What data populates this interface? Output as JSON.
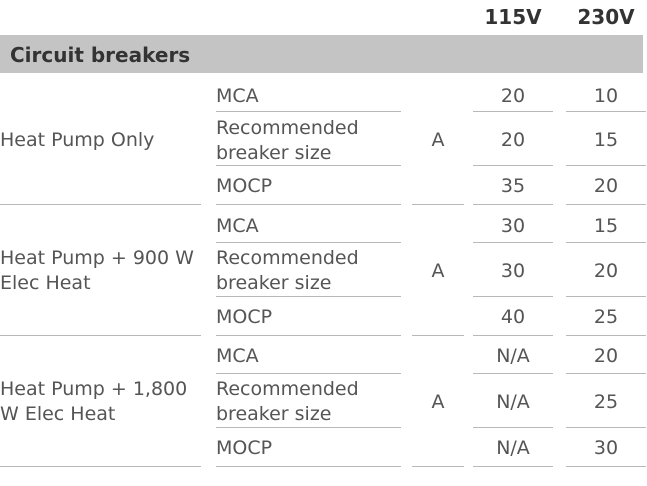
{
  "header": {
    "col_115": "115V",
    "col_230": "230V"
  },
  "section": {
    "title": "Circuit breakers"
  },
  "groups": [
    {
      "label": "Heat Pump Only",
      "unit": "A",
      "rows": [
        {
          "param": "MCA",
          "v115": "20",
          "v230": "10"
        },
        {
          "param": "Recommended breaker size",
          "v115": "20",
          "v230": "15"
        },
        {
          "param": "MOCP",
          "v115": "35",
          "v230": "20"
        }
      ]
    },
    {
      "label": "Heat Pump + 900 W Elec Heat",
      "unit": "A",
      "rows": [
        {
          "param": "MCA",
          "v115": "30",
          "v230": "15"
        },
        {
          "param": "Recommended breaker size",
          "v115": "30",
          "v230": "20"
        },
        {
          "param": "MOCP",
          "v115": "40",
          "v230": "25"
        }
      ]
    },
    {
      "label": "Heat Pump + 1,800 W Elec Heat",
      "unit": "A",
      "rows": [
        {
          "param": "MCA",
          "v115": "N/A",
          "v230": "20"
        },
        {
          "param": "Recommended breaker size",
          "v115": "N/A",
          "v230": "25"
        },
        {
          "param": "MOCP",
          "v115": "N/A",
          "v230": "30"
        }
      ]
    }
  ]
}
